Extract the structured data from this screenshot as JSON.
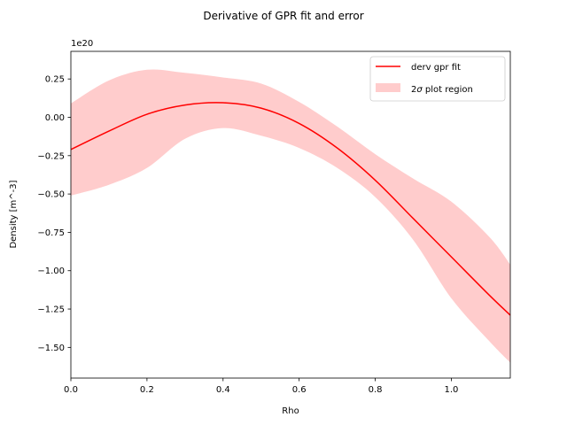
{
  "chart_data": {
    "type": "area",
    "title": "Derivative of GPR fit and error",
    "xlabel": "Rho",
    "ylabel": "Density [m^-3]",
    "offset_text": "1e20",
    "xlim": [
      0.0,
      1.155
    ],
    "ylim": [
      -1.7,
      0.43
    ],
    "x_ticks": [
      0.0,
      0.2,
      0.4,
      0.6,
      0.8,
      1.0
    ],
    "x_tick_labels": [
      "0.0",
      "0.2",
      "0.4",
      "0.6",
      "0.8",
      "1.0"
    ],
    "y_ticks": [
      0.25,
      0.0,
      -0.25,
      -0.5,
      -0.75,
      -1.0,
      -1.25,
      -1.5
    ],
    "y_tick_labels": [
      "0.25",
      "0.00",
      "−0.25",
      "−0.50",
      "−0.75",
      "−1.00",
      "−1.25",
      "−1.50"
    ],
    "grid": false,
    "legend_position": "top-right",
    "colors": {
      "line": "#ff0000",
      "band": "#ffcccc"
    },
    "x": [
      0.0,
      0.1,
      0.2,
      0.3,
      0.4,
      0.5,
      0.6,
      0.7,
      0.8,
      0.9,
      1.0,
      1.1,
      1.155
    ],
    "series": [
      {
        "name": "derv gpr fit",
        "kind": "line",
        "values": [
          -0.21,
          -0.09,
          0.02,
          0.08,
          0.095,
          0.06,
          -0.04,
          -0.2,
          -0.41,
          -0.66,
          -0.91,
          -1.16,
          -1.29
        ]
      },
      {
        "name": "2σ plot region",
        "kind": "band",
        "lower": [
          -0.51,
          -0.44,
          -0.33,
          -0.14,
          -0.07,
          -0.12,
          -0.2,
          -0.33,
          -0.52,
          -0.8,
          -1.18,
          -1.46,
          -1.6
        ],
        "upper": [
          0.09,
          0.24,
          0.31,
          0.29,
          0.26,
          0.22,
          0.1,
          -0.06,
          -0.24,
          -0.4,
          -0.55,
          -0.78,
          -0.96
        ]
      }
    ],
    "legend": [
      {
        "label": "derv gpr fit",
        "prefix": "derv gpr fit"
      },
      {
        "label": "2σ plot region",
        "prefix": "2",
        "symbol": "σ",
        "suffix": " plot region"
      }
    ]
  }
}
